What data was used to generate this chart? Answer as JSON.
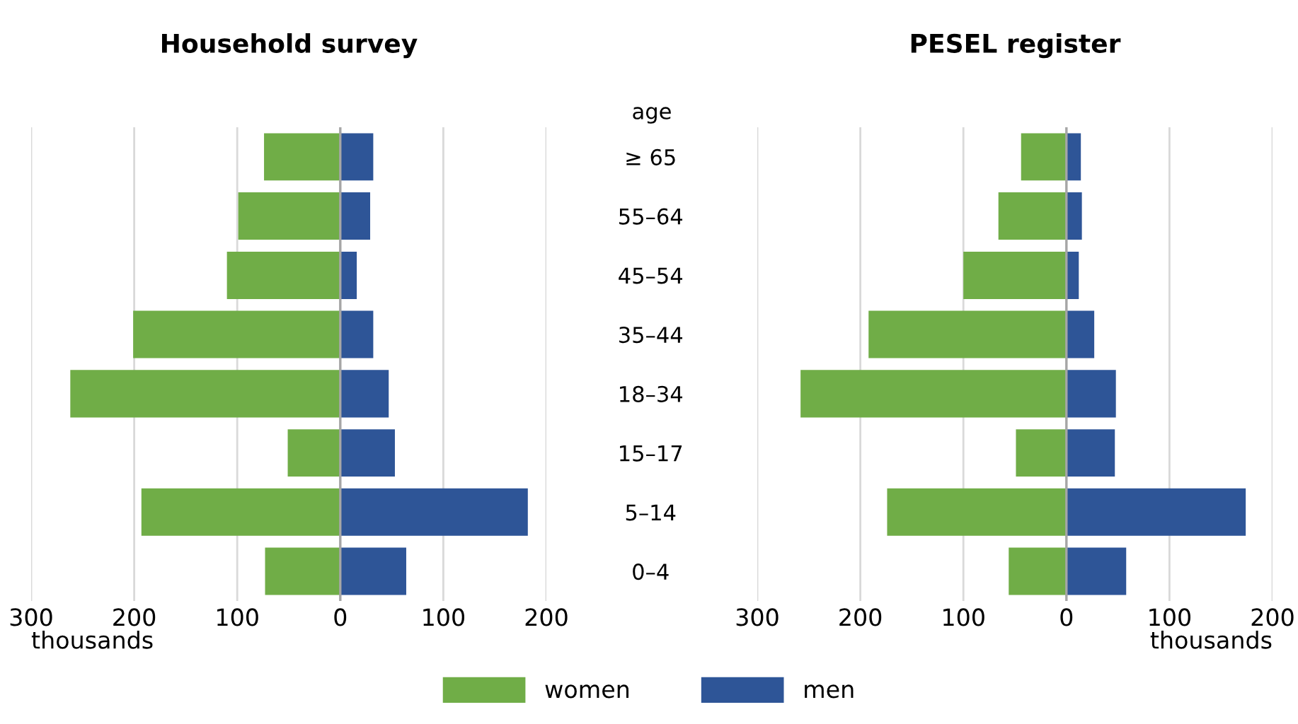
{
  "chart_data": [
    {
      "type": "bar",
      "title": "Household survey",
      "orientation": "horizontal",
      "stacked": true,
      "xlabel": "thousands",
      "categories": [
        "≥ 65",
        "55–64",
        "45–54",
        "35–44",
        "18–34",
        "15–17",
        "5–14",
        "0–4"
      ],
      "series": [
        {
          "name": "women",
          "color": "#70ad47",
          "values": [
            -74,
            -99,
            -110,
            -201,
            -262,
            -51,
            -193,
            -73
          ]
        },
        {
          "name": "men",
          "color": "#2e5597",
          "values": [
            32,
            29,
            16,
            32,
            47,
            53,
            182,
            64
          ]
        }
      ],
      "xlim": [
        -300,
        200
      ],
      "xticks": [
        {
          "value": -300,
          "label": "300"
        },
        {
          "value": -200,
          "label": "200"
        },
        {
          "value": -100,
          "label": "100"
        },
        0,
        100,
        200
      ],
      "ref_lines": [
        {
          "axis": "x",
          "value": 0,
          "color": "#a6a6a6"
        }
      ],
      "grid": "x",
      "legend": "bottom",
      "annotations": [
        "age"
      ]
    },
    {
      "type": "bar",
      "title": "PESEL register",
      "orientation": "horizontal",
      "stacked": true,
      "xlabel": "thousands",
      "categories": [
        null,
        null,
        null,
        null,
        null,
        null,
        null,
        null
      ],
      "series": [
        {
          "color": "#70ad47",
          "values": [
            -44,
            -66,
            -100,
            -192,
            -258,
            -49,
            -174,
            -56
          ]
        },
        {
          "color": "#2e5597",
          "values": [
            14,
            15,
            12,
            27,
            48,
            47,
            174,
            58
          ]
        }
      ],
      "xlim": [
        -300,
        200
      ],
      "xticks": [
        {
          "value": -300,
          "label": "300"
        },
        {
          "value": -200,
          "label": "200"
        },
        {
          "value": -100,
          "label": "100"
        },
        0,
        100,
        200
      ],
      "ref_lines": [
        {
          "axis": "x",
          "value": 0,
          "color": "#a6a6a6"
        }
      ],
      "grid": "x"
    }
  ]
}
